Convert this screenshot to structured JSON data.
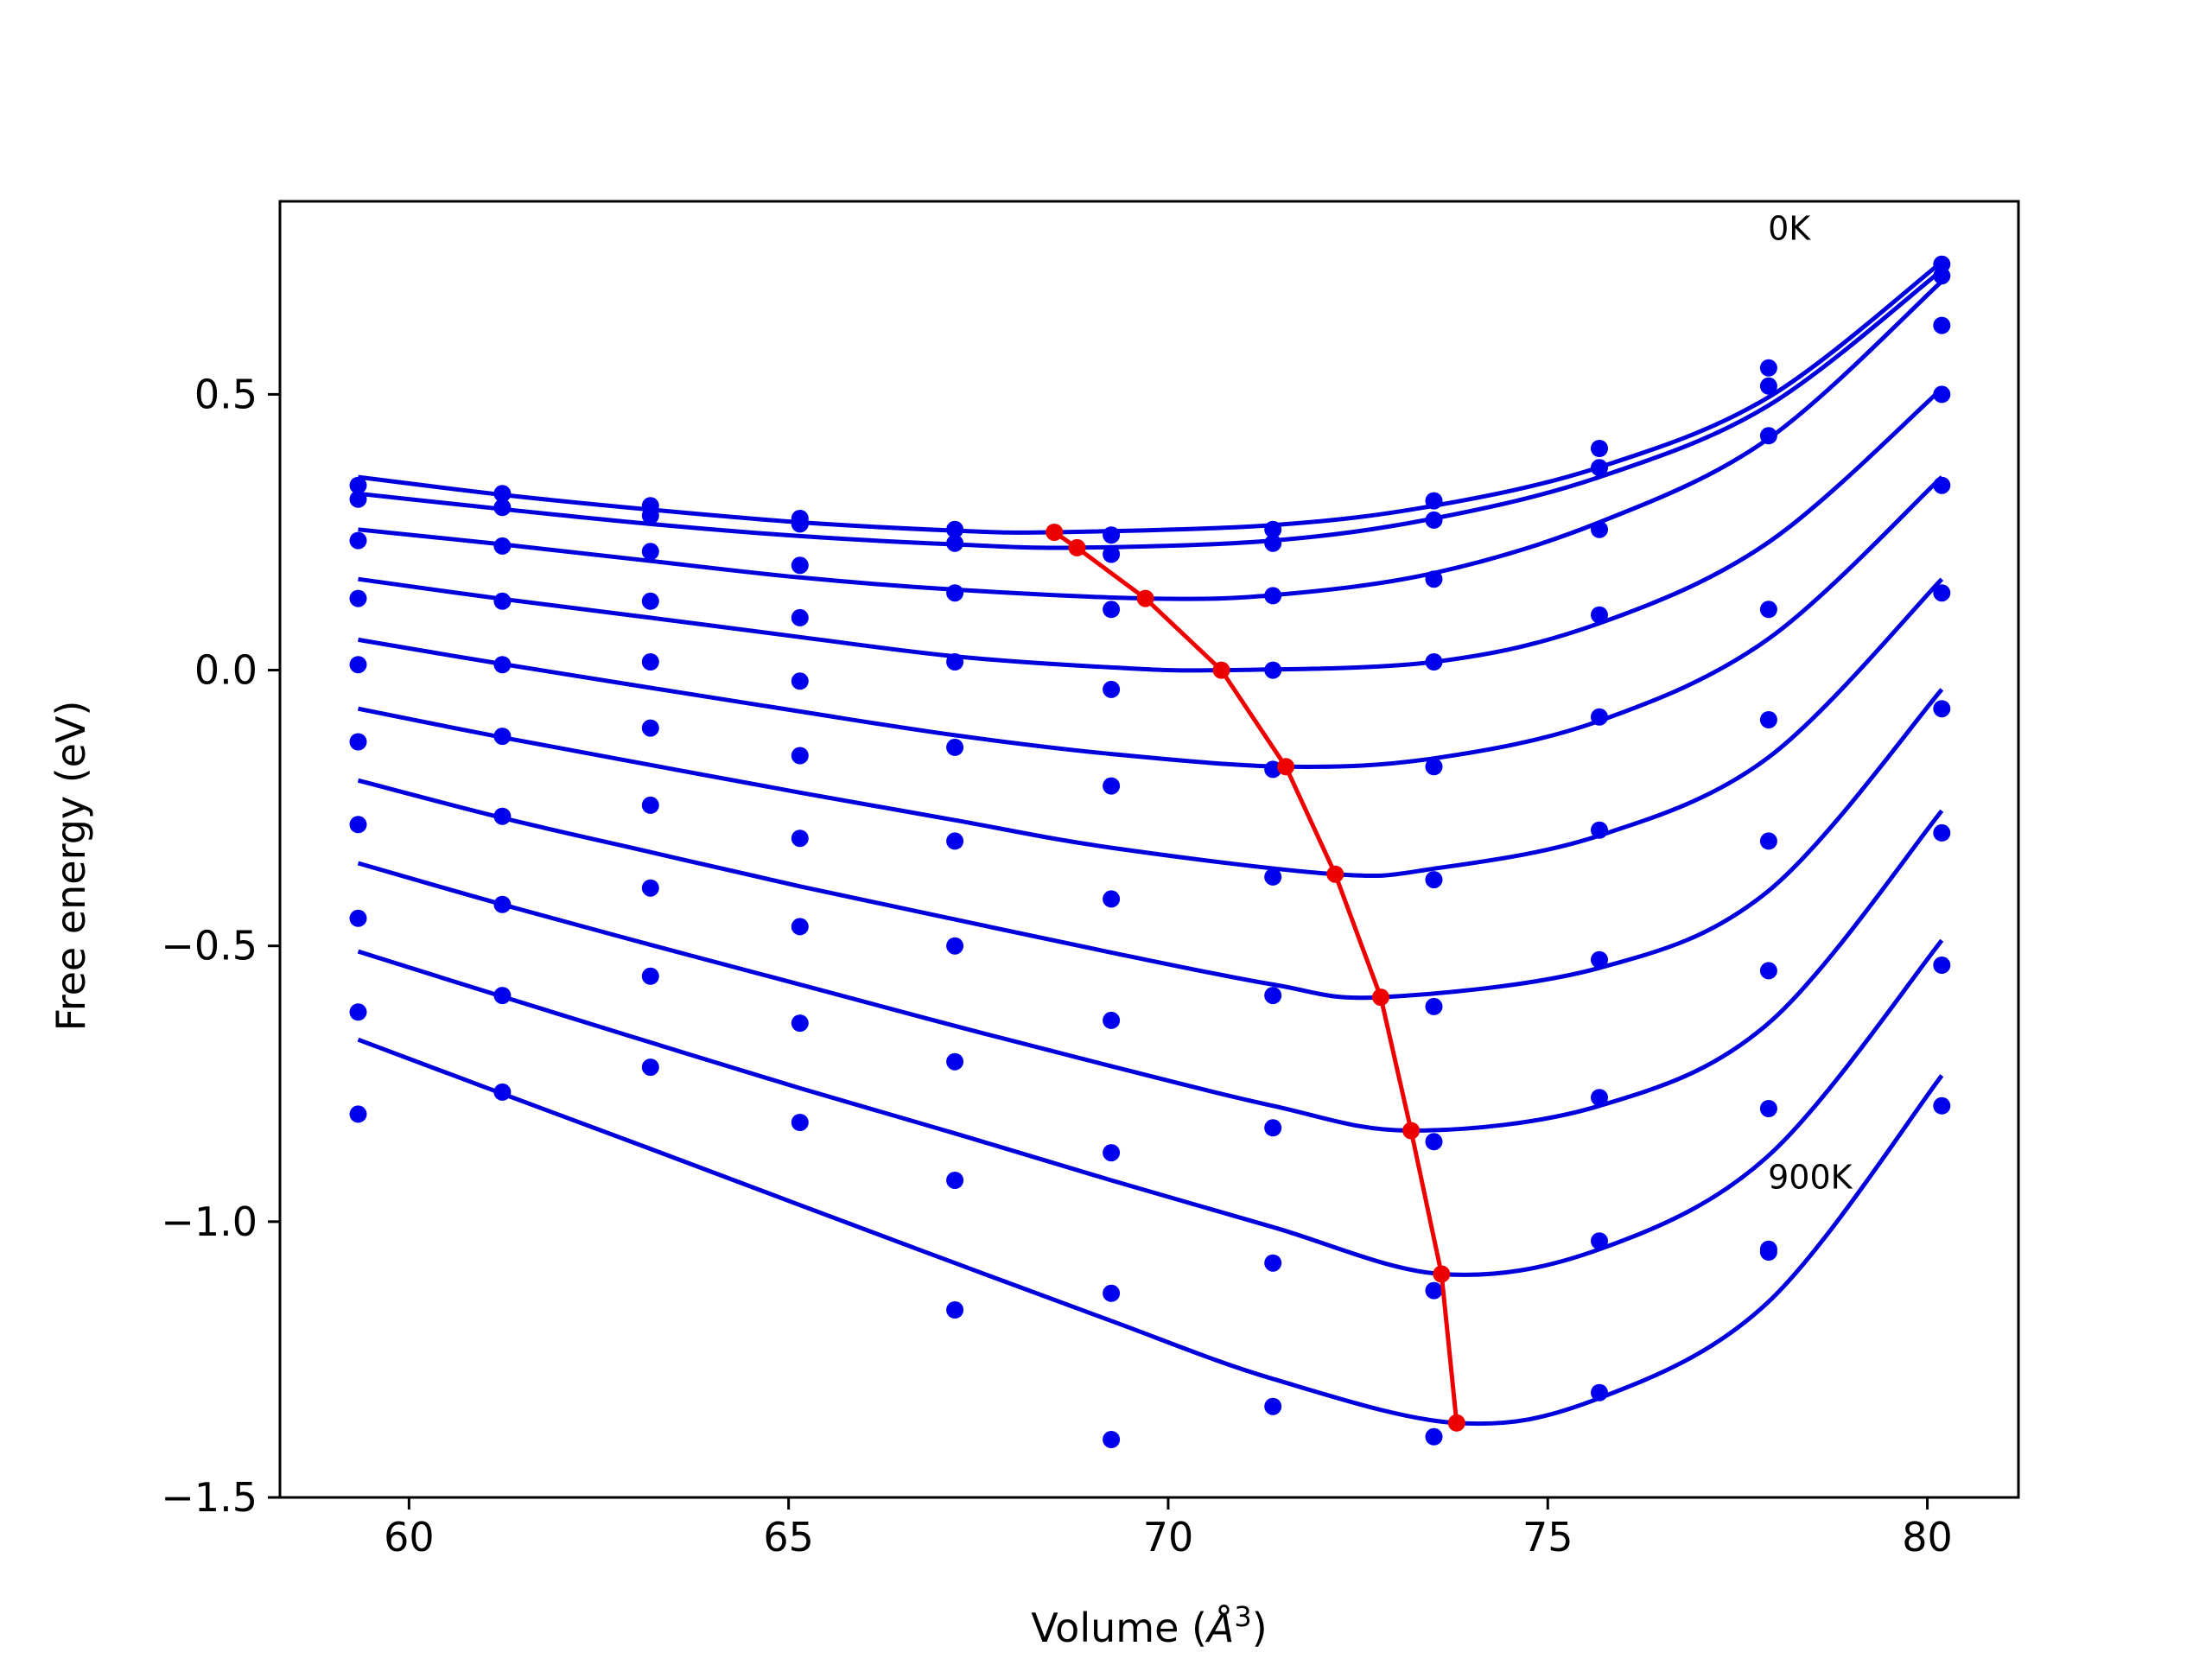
{
  "chart_data": {
    "type": "line",
    "xlabel": "Volume (",
    "xlabel_symbol": "Å",
    "xlabel_exponent": "3",
    "xlabel_close": ")",
    "ylabel": "Free energy (eV)",
    "xlim": [
      58.3,
      81.2
    ],
    "ylim": [
      -1.5,
      0.85
    ],
    "xticks": [
      60,
      65,
      70,
      75,
      80
    ],
    "xtick_labels": [
      "60",
      "65",
      "70",
      "75",
      "80"
    ],
    "yticks": [
      0.5,
      0.0,
      -0.5,
      -1.0,
      -1.5
    ],
    "ytick_labels": [
      "0.5",
      "0.0",
      "−0.5",
      "−1.0",
      "−1.5"
    ],
    "grid": false,
    "colors": {
      "curves": "#0000dd",
      "points": "#0000ee",
      "minimum_path": "#ee0000"
    },
    "annotations": [
      {
        "text": "0K",
        "x": 77.9,
        "y": 0.78
      },
      {
        "text": "900K",
        "x": 77.9,
        "y": -0.94
      }
    ],
    "x": [
      59.33,
      61.23,
      63.18,
      65.15,
      67.19,
      69.25,
      71.38,
      73.5,
      75.68,
      77.91,
      80.19
    ],
    "series": [
      {
        "points": [
          0.335,
          0.32,
          0.298,
          0.275,
          0.255,
          0.245,
          0.255,
          0.307,
          0.402,
          0.548,
          0.736
        ],
        "fit": [
          [
            59.33,
            0.35
          ],
          [
            61.23,
            0.318
          ],
          [
            63.18,
            0.291
          ],
          [
            65.15,
            0.268
          ],
          [
            67.19,
            0.253
          ],
          [
            68.5,
            0.25
          ],
          [
            71.38,
            0.263
          ],
          [
            73.5,
            0.298
          ],
          [
            75.68,
            0.368
          ],
          [
            77.91,
            0.495
          ],
          [
            80.19,
            0.74
          ]
        ]
      },
      {
        "points": [
          0.31,
          0.295,
          0.28,
          0.265,
          0.23,
          0.21,
          0.23,
          0.272,
          0.367,
          0.515,
          0.715
        ],
        "fit": [
          [
            59.33,
            0.32
          ],
          [
            61.23,
            0.292
          ],
          [
            63.18,
            0.265
          ],
          [
            65.15,
            0.243
          ],
          [
            67.19,
            0.228
          ],
          [
            68.8,
            0.222
          ],
          [
            71.38,
            0.235
          ],
          [
            73.5,
            0.275
          ],
          [
            75.68,
            0.35
          ],
          [
            77.91,
            0.48
          ],
          [
            80.19,
            0.725
          ]
        ]
      },
      {
        "points": [
          0.235,
          0.225,
          0.215,
          0.19,
          0.14,
          0.11,
          0.135,
          0.165,
          0.255,
          0.425,
          0.625
        ],
        "fit": [
          [
            59.33,
            0.255
          ],
          [
            61.23,
            0.228
          ],
          [
            63.18,
            0.198
          ],
          [
            65.15,
            0.168
          ],
          [
            67.19,
            0.146
          ],
          [
            69.7,
            0.13
          ],
          [
            71.38,
            0.136
          ],
          [
            73.5,
            0.176
          ],
          [
            75.68,
            0.268
          ],
          [
            77.91,
            0.42
          ],
          [
            80.19,
            0.705
          ]
        ]
      },
      {
        "points": [
          0.13,
          0.125,
          0.125,
          0.095,
          0.015,
          -0.035,
          0.0,
          0.015,
          0.1,
          0.11,
          0.5
        ],
        "fit": [
          [
            59.33,
            0.165
          ],
          [
            61.23,
            0.129
          ],
          [
            63.18,
            0.095
          ],
          [
            65.15,
            0.06
          ],
          [
            67.19,
            0.025
          ],
          [
            69.25,
            0.005
          ],
          [
            70.7,
            0.0
          ],
          [
            73.5,
            0.015
          ],
          [
            75.68,
            0.085
          ],
          [
            77.91,
            0.232
          ],
          [
            80.19,
            0.51
          ]
        ]
      },
      {
        "points": [
          0.01,
          0.01,
          0.015,
          -0.02,
          -0.14,
          -0.21,
          -0.18,
          -0.175,
          -0.085,
          -0.09,
          0.335
        ],
        "fit": [
          [
            59.33,
            0.055
          ],
          [
            61.23,
            0.011
          ],
          [
            63.18,
            -0.032
          ],
          [
            65.15,
            -0.075
          ],
          [
            67.19,
            -0.118
          ],
          [
            69.25,
            -0.152
          ],
          [
            71.55,
            -0.175
          ],
          [
            73.5,
            -0.16
          ],
          [
            75.68,
            -0.092
          ],
          [
            77.91,
            0.057
          ],
          [
            80.19,
            0.35
          ]
        ]
      },
      {
        "points": [
          -0.13,
          -0.12,
          -0.105,
          -0.155,
          -0.31,
          -0.415,
          -0.375,
          -0.38,
          -0.29,
          -0.31,
          0.14
        ],
        "fit": [
          [
            59.33,
            -0.07
          ],
          [
            61.23,
            -0.122
          ],
          [
            63.18,
            -0.172
          ],
          [
            65.15,
            -0.222
          ],
          [
            67.19,
            -0.272
          ],
          [
            69.25,
            -0.322
          ],
          [
            72.2,
            -0.37
          ],
          [
            73.5,
            -0.36
          ],
          [
            75.68,
            -0.3
          ],
          [
            77.91,
            -0.158
          ],
          [
            80.19,
            0.165
          ]
        ]
      },
      {
        "points": [
          -0.28,
          -0.265,
          -0.245,
          -0.305,
          -0.5,
          -0.635,
          -0.59,
          -0.61,
          -0.525,
          -0.545,
          -0.07
        ],
        "fit": [
          [
            59.33,
            -0.2
          ],
          [
            61.23,
            -0.268
          ],
          [
            63.18,
            -0.33
          ],
          [
            65.15,
            -0.392
          ],
          [
            67.19,
            -0.452
          ],
          [
            69.25,
            -0.512
          ],
          [
            71.38,
            -0.57
          ],
          [
            72.8,
            -0.593
          ],
          [
            75.68,
            -0.54
          ],
          [
            77.91,
            -0.4
          ],
          [
            80.19,
            -0.035
          ]
        ]
      },
      {
        "points": [
          -0.45,
          -0.425,
          -0.395,
          -0.465,
          -0.71,
          -0.875,
          -0.83,
          -0.855,
          -0.775,
          -0.795,
          -0.295
        ],
        "fit": [
          [
            59.33,
            -0.35
          ],
          [
            61.23,
            -0.425
          ],
          [
            63.18,
            -0.498
          ],
          [
            65.15,
            -0.57
          ],
          [
            67.19,
            -0.645
          ],
          [
            69.25,
            -0.718
          ],
          [
            71.38,
            -0.79
          ],
          [
            73.2,
            -0.835
          ],
          [
            75.68,
            -0.79
          ],
          [
            77.91,
            -0.64
          ],
          [
            80.19,
            -0.255
          ]
        ]
      },
      {
        "points": [
          -0.62,
          -0.59,
          -0.555,
          -0.64,
          -0.925,
          -1.13,
          -1.075,
          -1.125,
          -1.035,
          -1.055,
          -0.535
        ],
        "fit": [
          [
            59.33,
            -0.51
          ],
          [
            61.23,
            -0.592
          ],
          [
            63.18,
            -0.675
          ],
          [
            65.15,
            -0.758
          ],
          [
            67.19,
            -0.84
          ],
          [
            69.25,
            -0.925
          ],
          [
            71.38,
            -1.01
          ],
          [
            73.6,
            -1.095
          ],
          [
            75.68,
            -1.05
          ],
          [
            77.91,
            -0.88
          ],
          [
            80.19,
            -0.49
          ]
        ]
      },
      {
        "points": [
          -0.805,
          -0.765,
          -0.72,
          -0.82,
          -1.16,
          -1.395,
          -1.335,
          -1.39,
          -1.31,
          -1.05,
          -0.79
        ],
        "fit": [
          [
            59.33,
            -0.67
          ],
          [
            61.23,
            -0.768
          ],
          [
            63.18,
            -0.868
          ],
          [
            65.15,
            -0.97
          ],
          [
            67.19,
            -1.075
          ],
          [
            69.25,
            -1.18
          ],
          [
            71.38,
            -1.285
          ],
          [
            73.8,
            -1.365
          ],
          [
            75.68,
            -1.32
          ],
          [
            77.91,
            -1.145
          ],
          [
            80.19,
            -0.735
          ]
        ]
      }
    ],
    "minimum_path": {
      "x": [
        68.5,
        68.8,
        69.7,
        70.7,
        71.55,
        72.2,
        72.8,
        73.2,
        73.6,
        73.8
      ],
      "y": [
        0.25,
        0.222,
        0.13,
        0.0,
        -0.175,
        -0.37,
        -0.593,
        -0.835,
        -1.095,
        -1.365
      ]
    }
  }
}
